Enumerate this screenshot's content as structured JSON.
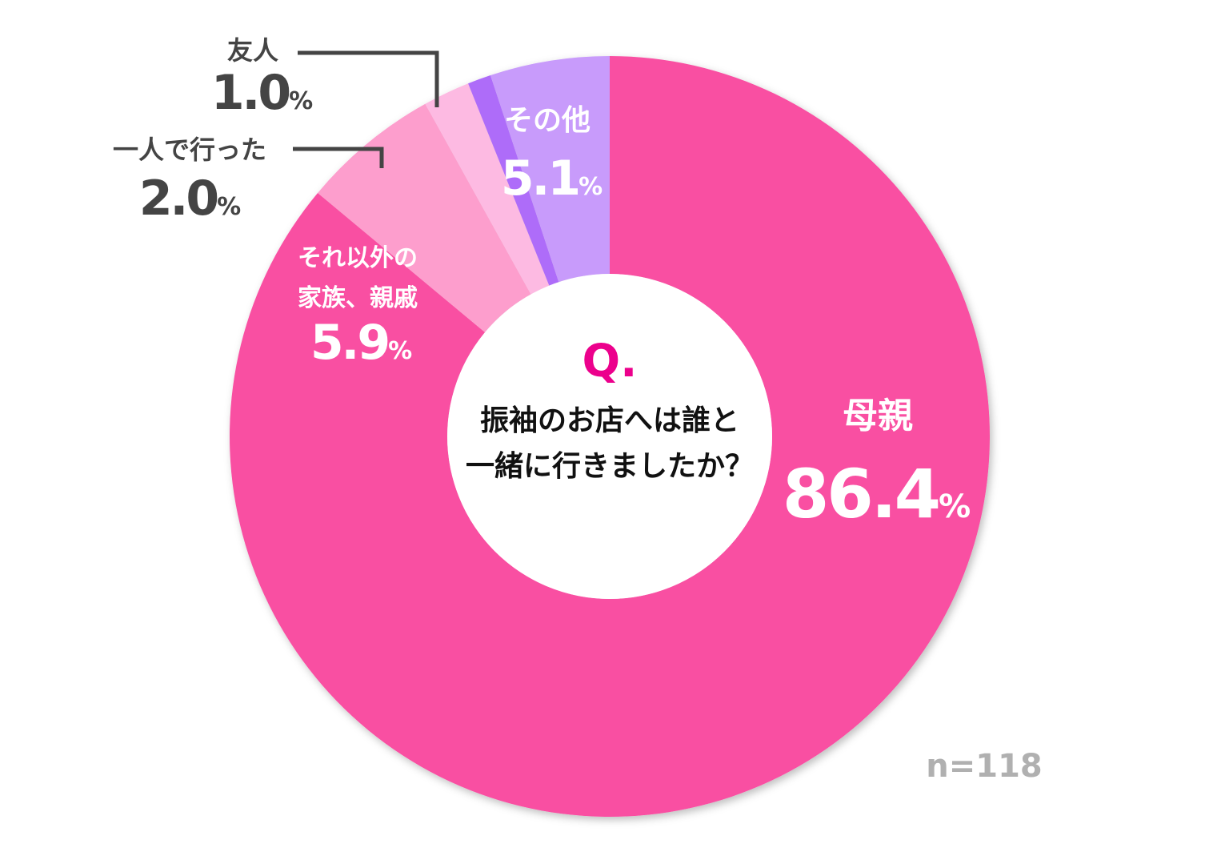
{
  "chart_data": {
    "type": "pie",
    "variant": "donut",
    "question_marker": "Q.",
    "question_line1": "振袖のお店へは誰と",
    "question_line2": "一緒に行きましたか？",
    "sample_size": "n=118",
    "percent_sign": "%",
    "slices": [
      {
        "key": "mother",
        "label": "母親",
        "value": 86.4,
        "value_text": "86.4",
        "color": "#f94fa2"
      },
      {
        "key": "relatives",
        "label_line1": "それ以外の",
        "label_line2": "家族、親戚",
        "value": 5.9,
        "value_text": "5.9",
        "color": "#fd9ecd"
      },
      {
        "key": "alone",
        "label": "一人で行った",
        "value": 2.0,
        "value_text": "2.0",
        "color": "#fdbae2"
      },
      {
        "key": "friend",
        "label": "友人",
        "value": 1.0,
        "value_text": "1.0",
        "color": "#ae6cf9"
      },
      {
        "key": "other",
        "label": "その他",
        "value": 5.1,
        "value_text": "5.1",
        "color": "#c89bfb"
      }
    ],
    "colors": {
      "inside_label": "#ffffff",
      "outside_label": "#444444",
      "leader_line": "#444444",
      "question_marker": "#ec008c",
      "question_text": "#111111",
      "sample_size": "#b0b0b0"
    }
  }
}
